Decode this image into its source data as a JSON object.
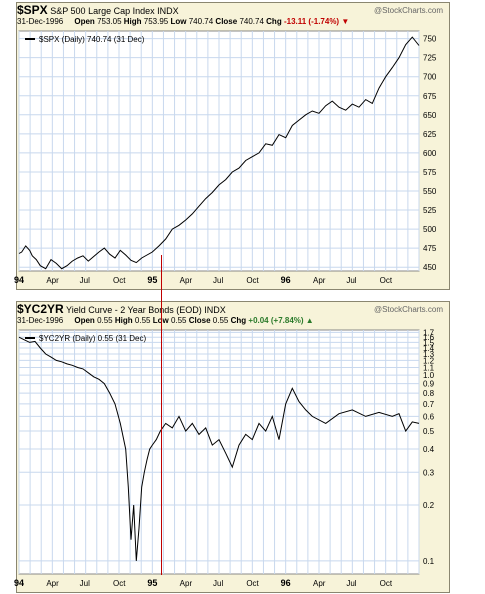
{
  "colors": {
    "panel_bg": "#f7f3d9",
    "grid": "#c8d8ee",
    "line": "#000000",
    "marker": "#c00000"
  },
  "marker_date": "95",
  "chart_data": [
    {
      "type": "line",
      "symbol": "$SPX",
      "name": "S&P 500 Large Cap Index",
      "exchange": "INDX",
      "date": "31-Dec-1996",
      "open": "753.05",
      "high": "753.95",
      "low": "740.74",
      "close": "740.74",
      "chg": "-13.11 (-1.74%)",
      "source": "@StockCharts.com",
      "legend": "$SPX (Daily) 740.74 (31 Dec)",
      "x_labels": [
        "94",
        "Apr",
        "Jul",
        "Oct",
        "95",
        "Apr",
        "Jul",
        "Oct",
        "96",
        "Apr",
        "Jul",
        "Oct"
      ],
      "y_ticks": [
        450,
        475,
        500,
        525,
        550,
        575,
        600,
        625,
        650,
        675,
        700,
        725,
        750
      ],
      "ylim": [
        445,
        760
      ],
      "scale": "linear",
      "x": [
        0,
        0.02,
        0.05,
        0.08,
        0.1,
        0.13,
        0.16,
        0.2,
        0.24,
        0.28,
        0.32,
        0.36,
        0.4,
        0.44,
        0.48,
        0.52,
        0.56,
        0.6,
        0.64,
        0.68,
        0.72,
        0.76,
        0.8,
        0.84,
        0.88,
        0.92,
        0.96,
        1.0,
        1.05,
        1.1,
        1.15,
        1.2,
        1.25,
        1.3,
        1.35,
        1.4,
        1.45,
        1.5,
        1.55,
        1.6,
        1.65,
        1.7,
        1.75,
        1.8,
        1.85,
        1.9,
        1.95,
        2.0,
        2.05,
        2.1,
        2.15,
        2.2,
        2.25,
        2.3,
        2.35,
        2.4,
        2.45,
        2.5,
        2.55,
        2.6,
        2.65,
        2.7,
        2.75,
        2.8,
        2.85,
        2.9,
        2.95,
        3.0
      ],
      "y": [
        468,
        470,
        478,
        472,
        465,
        460,
        452,
        448,
        460,
        455,
        448,
        452,
        458,
        462,
        465,
        458,
        464,
        470,
        475,
        467,
        462,
        472,
        466,
        459,
        456,
        462,
        466,
        470,
        478,
        487,
        500,
        505,
        512,
        520,
        530,
        540,
        548,
        558,
        565,
        575,
        580,
        590,
        595,
        600,
        612,
        610,
        624,
        620,
        636,
        643,
        650,
        655,
        652,
        662,
        668,
        660,
        656,
        664,
        660,
        670,
        665,
        685,
        700,
        712,
        725,
        742,
        752,
        741
      ]
    },
    {
      "type": "line",
      "symbol": "$YC2YR",
      "name": "Yield Curve - 2 Year Bonds (EOD)",
      "exchange": "INDX",
      "date": "31-Dec-1996",
      "open": "0.55",
      "high": "0.55",
      "low": "0.55",
      "close": "0.55",
      "chg": "+0.04 (+7.84%)",
      "source": "@StockCharts.com",
      "legend": "$YC2YR (Daily) 0.55 (31 Dec)",
      "x_labels": [
        "94",
        "Apr",
        "Jul",
        "Oct",
        "95",
        "Apr",
        "Jul",
        "Oct",
        "96",
        "Apr",
        "Jul",
        "Oct"
      ],
      "y_ticks": [
        "0.1",
        "0.2",
        "0.3",
        "0.4",
        "0.5",
        "0.6",
        "0.7",
        "0.8",
        "0.9",
        "1.0",
        "1.1",
        "1.2",
        "1.3",
        "1.4",
        "1.5",
        "1.6",
        "1.7"
      ],
      "y_tick_values": [
        0.1,
        0.2,
        0.3,
        0.4,
        0.5,
        0.6,
        0.7,
        0.8,
        0.9,
        1.0,
        1.1,
        1.2,
        1.3,
        1.4,
        1.5,
        1.6,
        1.7
      ],
      "ylim": [
        0.085,
        1.75
      ],
      "scale": "log",
      "x": [
        0,
        0.04,
        0.08,
        0.12,
        0.16,
        0.2,
        0.24,
        0.28,
        0.32,
        0.36,
        0.4,
        0.44,
        0.48,
        0.52,
        0.56,
        0.6,
        0.64,
        0.68,
        0.72,
        0.76,
        0.8,
        0.82,
        0.84,
        0.86,
        0.88,
        0.9,
        0.92,
        0.94,
        0.96,
        0.98,
        1.0,
        1.03,
        1.06,
        1.1,
        1.15,
        1.2,
        1.25,
        1.3,
        1.35,
        1.4,
        1.45,
        1.5,
        1.55,
        1.6,
        1.65,
        1.7,
        1.75,
        1.8,
        1.85,
        1.9,
        1.95,
        2.0,
        2.05,
        2.1,
        2.15,
        2.2,
        2.3,
        2.4,
        2.5,
        2.6,
        2.7,
        2.8,
        2.85,
        2.9,
        2.95,
        3.0
      ],
      "y": [
        1.6,
        1.55,
        1.5,
        1.52,
        1.4,
        1.3,
        1.25,
        1.2,
        1.18,
        1.15,
        1.13,
        1.1,
        1.08,
        1.03,
        0.98,
        0.95,
        0.9,
        0.8,
        0.7,
        0.55,
        0.4,
        0.25,
        0.13,
        0.2,
        0.1,
        0.15,
        0.25,
        0.3,
        0.35,
        0.4,
        0.42,
        0.45,
        0.5,
        0.55,
        0.52,
        0.6,
        0.5,
        0.55,
        0.48,
        0.52,
        0.42,
        0.45,
        0.38,
        0.32,
        0.42,
        0.48,
        0.45,
        0.55,
        0.5,
        0.6,
        0.45,
        0.7,
        0.85,
        0.72,
        0.65,
        0.6,
        0.55,
        0.62,
        0.65,
        0.6,
        0.63,
        0.6,
        0.62,
        0.5,
        0.56,
        0.55
      ]
    }
  ]
}
